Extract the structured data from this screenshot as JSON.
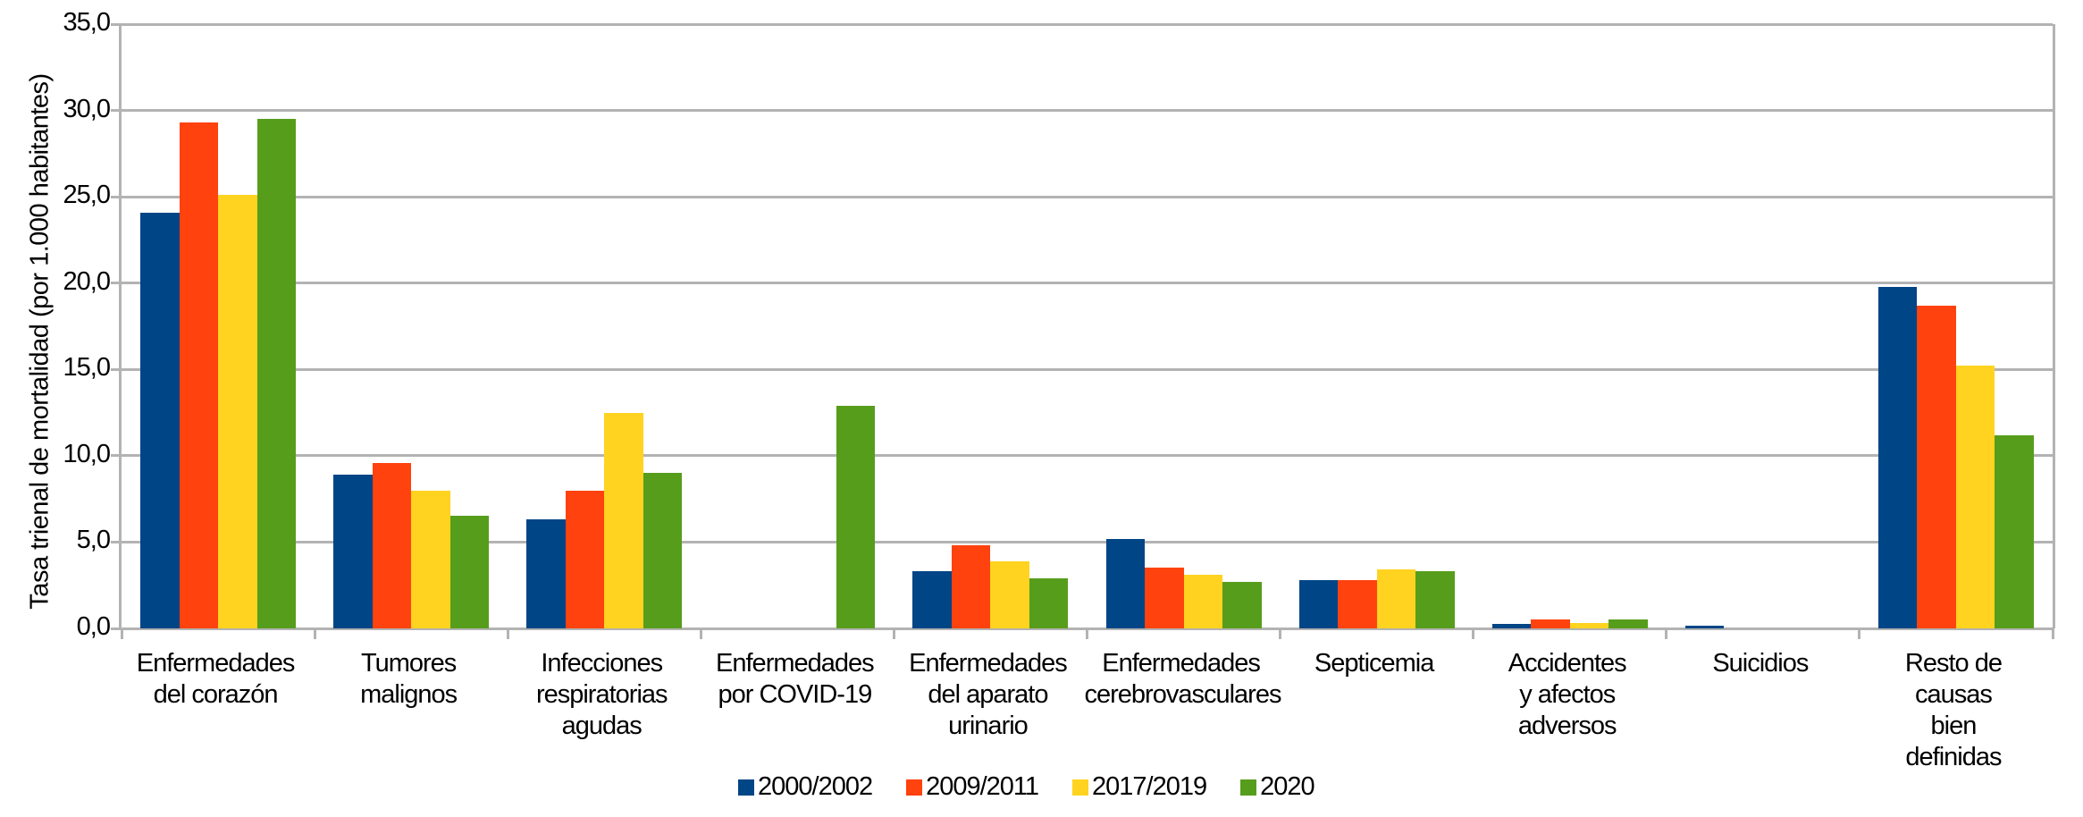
{
  "chart_data": {
    "type": "bar",
    "title": "",
    "xlabel": "",
    "ylabel": "Tasa trienal de mortalidad (por 1.000 habitantes)",
    "ylim": [
      0,
      35
    ],
    "yticks": [
      "0,0",
      "5,0",
      "10,0",
      "15,0",
      "20,0",
      "25,0",
      "30,0",
      "35,0"
    ],
    "grid": true,
    "legend_position": "bottom",
    "categories": [
      "Enfermedades\ndel corazón",
      "Tumores\nmalignos",
      "Infecciones\nrespiratorias\nagudas",
      "Enfermedades\npor COVID-19",
      "Enfermedades\ndel aparato\nurinario",
      "Enfermedades\ncerebrovasculares",
      "Septicemia",
      "Accidentes\ny afectos\nadversos",
      "Suicidios",
      "Resto de\ncausas\nbien\ndefinidas"
    ],
    "series": [
      {
        "name": "2000/2002",
        "color": "#004586",
        "values": [
          24.1,
          8.9,
          6.3,
          0.0,
          3.3,
          5.2,
          2.8,
          0.24,
          0.14,
          19.8
        ]
      },
      {
        "name": "2009/2011",
        "color": "#ff420e",
        "values": [
          29.3,
          9.6,
          8.0,
          0.0,
          4.8,
          3.5,
          2.8,
          0.5,
          0.0,
          18.7
        ]
      },
      {
        "name": "2017/2019",
        "color": "#ffd320",
        "values": [
          25.1,
          8.0,
          12.5,
          0.0,
          3.9,
          3.1,
          3.4,
          0.33,
          0.0,
          15.2
        ]
      },
      {
        "name": "2020",
        "color": "#579d1c",
        "values": [
          29.5,
          6.5,
          9.0,
          12.9,
          2.9,
          2.7,
          3.3,
          0.5,
          0.0,
          11.2
        ]
      }
    ]
  }
}
